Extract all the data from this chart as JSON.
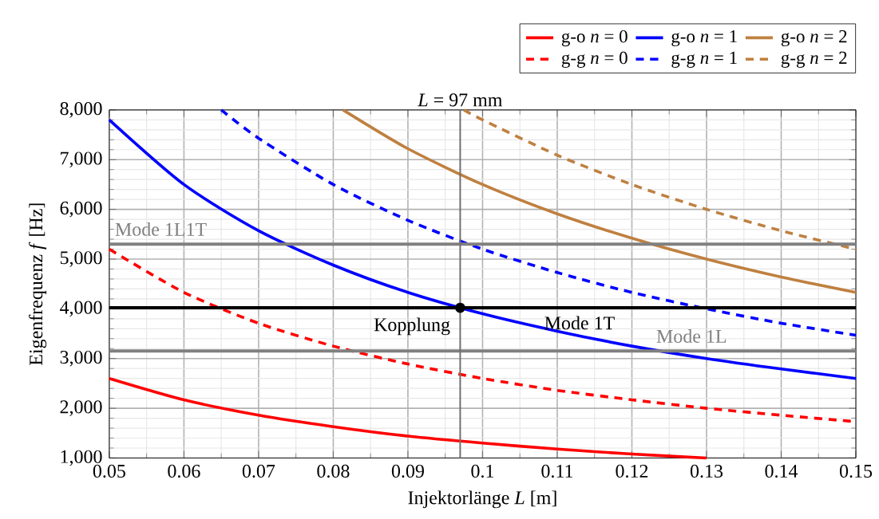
{
  "chart_data": {
    "type": "line",
    "xlabel": "Injektorlänge *L* [m]",
    "ylabel": "Eigenfrequenz *f* [Hz]",
    "xlim": [
      0.05,
      0.15
    ],
    "ylim": [
      1000,
      8000
    ],
    "xticks": [
      0.05,
      0.06,
      0.07,
      0.08,
      0.09,
      0.1,
      0.11,
      0.12,
      0.13,
      0.14,
      0.15
    ],
    "yticks": [
      {
        "value": 1000,
        "label": "1,000"
      },
      {
        "value": 2000,
        "label": "2,000"
      },
      {
        "value": 3000,
        "label": "3,000"
      },
      {
        "value": 4000,
        "label": "4,000"
      },
      {
        "value": 5000,
        "label": "5,000"
      },
      {
        "value": 6000,
        "label": "6,000"
      },
      {
        "value": 7000,
        "label": "7,000"
      },
      {
        "value": 8000,
        "label": "8,000"
      }
    ],
    "grid": true,
    "legend": "top right",
    "marker": "none",
    "series": [
      {
        "name": "g-o *n* = 0",
        "color": "#ff0000",
        "line_style": "solid",
        "x": [
          0.05,
          0.06,
          0.07,
          0.08,
          0.09,
          0.1,
          0.11,
          0.12,
          0.13
        ],
        "values": [
          2600,
          2170,
          1860,
          1630,
          1440,
          1300,
          1180,
          1080,
          1000
        ]
      },
      {
        "name": "g-o *n* = 1",
        "color": "#0000ff",
        "line_style": "solid",
        "x": [
          0.05,
          0.06,
          0.07,
          0.08,
          0.09,
          0.1,
          0.11,
          0.12,
          0.13,
          0.14,
          0.15
        ],
        "values": [
          7800,
          6500,
          5570,
          4880,
          4330,
          3900,
          3550,
          3250,
          3000,
          2790,
          2600
        ]
      },
      {
        "name": "g-o *n* = 2",
        "color": "#bf8040",
        "line_style": "solid",
        "x": [
          0.0813,
          0.09,
          0.1,
          0.11,
          0.12,
          0.13,
          0.14,
          0.15
        ],
        "values": [
          8000,
          7220,
          6500,
          5910,
          5420,
          5000,
          4640,
          4330
        ]
      },
      {
        "name": "g-g *n* = 0",
        "color": "#ff0000",
        "line_style": "dashed",
        "x": [
          0.05,
          0.06,
          0.07,
          0.08,
          0.09,
          0.1,
          0.11,
          0.12,
          0.13,
          0.14,
          0.15
        ],
        "values": [
          5200,
          4330,
          3710,
          3250,
          2890,
          2600,
          2360,
          2170,
          2000,
          1860,
          1730
        ]
      },
      {
        "name": "g-g *n* = 1",
        "color": "#0000ff",
        "line_style": "dashed",
        "x": [
          0.065,
          0.07,
          0.08,
          0.09,
          0.1,
          0.11,
          0.12,
          0.13,
          0.14,
          0.15
        ],
        "values": [
          8000,
          7430,
          6500,
          5780,
          5200,
          4730,
          4330,
          4000,
          3710,
          3470
        ]
      },
      {
        "name": "g-g *n* = 2",
        "color": "#bf8040",
        "line_style": "dashed",
        "x": [
          0.0975,
          0.1,
          0.11,
          0.12,
          0.13,
          0.14,
          0.15
        ],
        "values": [
          8000,
          7800,
          7090,
          6500,
          6000,
          5570,
          5200
        ]
      }
    ],
    "ref_lines": [
      {
        "axis": "y",
        "value": 5300,
        "label": "Mode 1L1T",
        "color": "#808080"
      },
      {
        "axis": "y",
        "value": 4020,
        "label": "Mode 1T",
        "color": "#000000"
      },
      {
        "axis": "y",
        "value": 3150,
        "label": "Mode 1L",
        "color": "#808080"
      },
      {
        "axis": "x",
        "value": 0.097,
        "label": "*L* = 97 mm",
        "color": "#707070"
      }
    ],
    "annotations": [
      {
        "text": "Kopplung",
        "x": 0.097,
        "y": 4020
      }
    ]
  }
}
